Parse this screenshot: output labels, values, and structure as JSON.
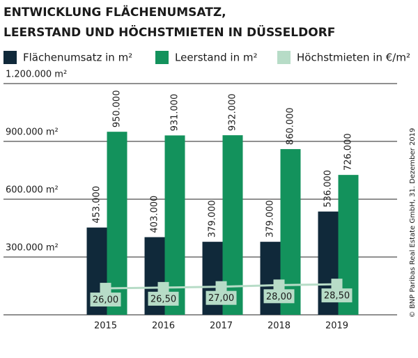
{
  "chart_data": {
    "type": "bar",
    "title": [
      "ENTWICKLUNG FLÄCHENUMSATZ,",
      "LEERSTAND UND HÖCHSTMIETEN IN DÜSSELDORF"
    ],
    "categories": [
      "2015",
      "2016",
      "2017",
      "2018",
      "2019"
    ],
    "series": [
      {
        "name": "Flächenumsatz in m²",
        "color": "#10293a",
        "values": [
          453000,
          403000,
          379000,
          379000,
          536000
        ],
        "value_labels": [
          "453.000",
          "403.000",
          "379.000",
          "379.000",
          "536.000"
        ]
      },
      {
        "name": "Leerstand in m²",
        "color": "#13925c",
        "values": [
          950000,
          931000,
          932000,
          860000,
          726000
        ],
        "value_labels": [
          "950.000",
          "931.000",
          "932.000",
          "860.000",
          "726.000"
        ]
      },
      {
        "name": "Höchstmieten in €/m²",
        "type": "line",
        "axis": "y2",
        "color": "#b7dcc7",
        "values": [
          26.0,
          26.5,
          27.0,
          28.0,
          28.5
        ],
        "value_labels": [
          "26,00",
          "26,50",
          "27,00",
          "28,00",
          "28,50"
        ]
      }
    ],
    "ylim": [
      0,
      1200000
    ],
    "yticks": [
      {
        "value": 300000,
        "label": "300.000 m²"
      },
      {
        "value": 600000,
        "label": "600.000 m²"
      },
      {
        "value": 900000,
        "label": "900.000 m²"
      },
      {
        "value": 1200000,
        "label": "1.200.000 m²"
      }
    ],
    "y2lim": [
      10,
      150
    ],
    "grid": true,
    "source": "© BNP Paribas Real Estate GmbH, 31. Dezember 2019"
  }
}
